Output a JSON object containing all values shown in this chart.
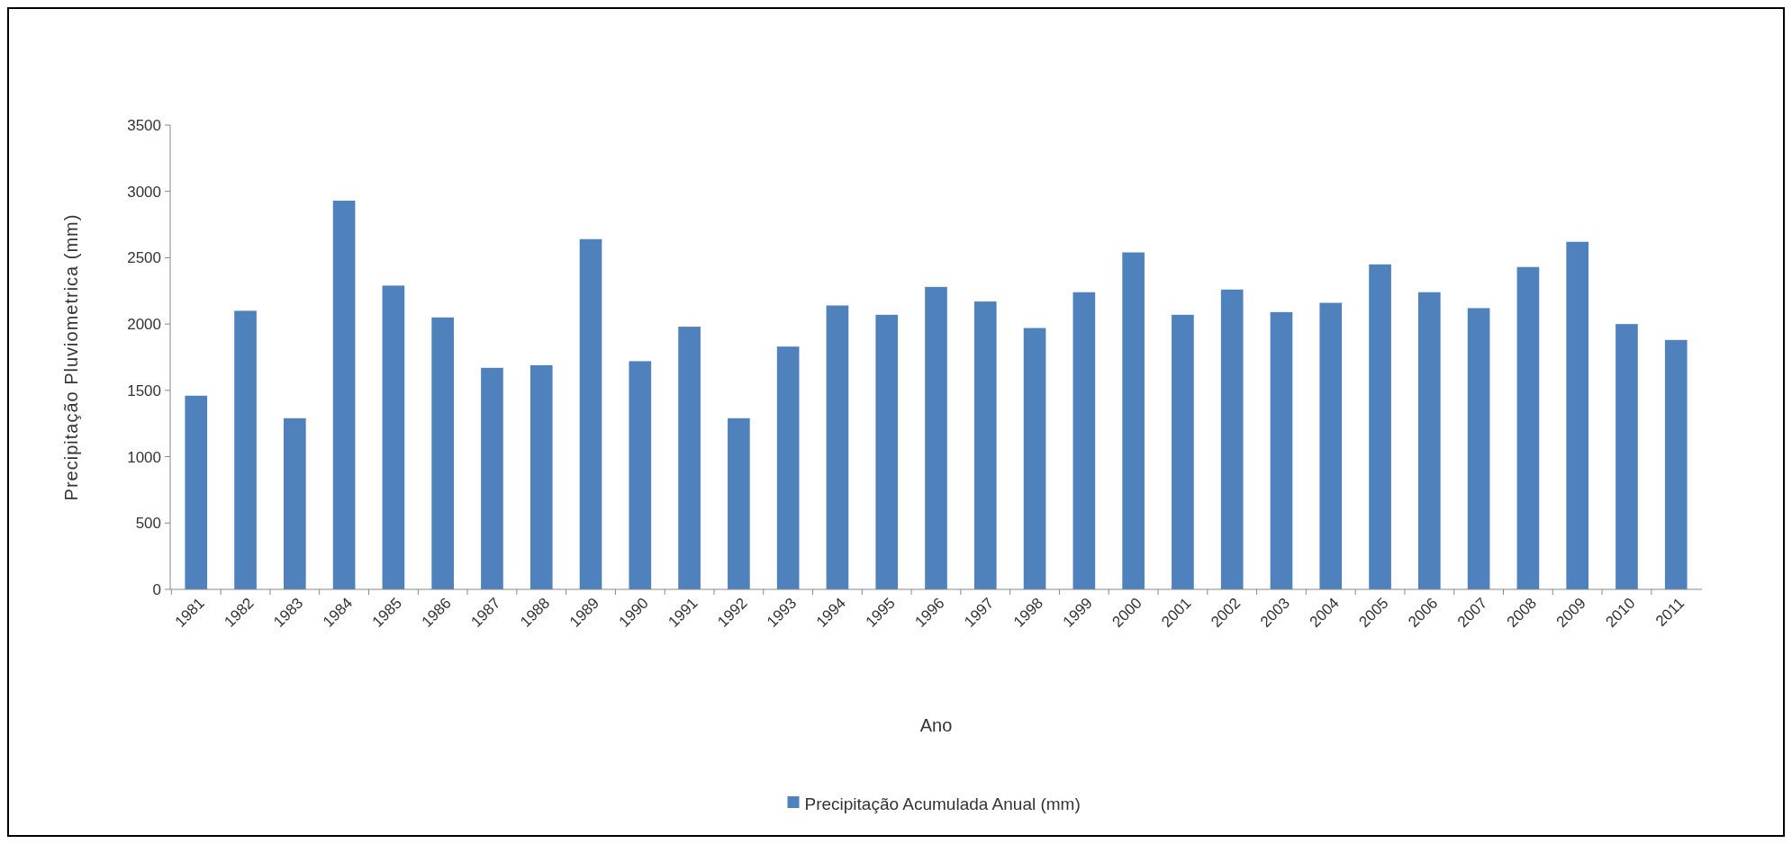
{
  "chart_data": {
    "type": "bar",
    "xlabel": "Ano",
    "ylabel": "Precipitação  Pluviometrica (mm)",
    "categories": [
      "1981",
      "1982",
      "1983",
      "1984",
      "1985",
      "1986",
      "1987",
      "1988",
      "1989",
      "1990",
      "1991",
      "1992",
      "1993",
      "1994",
      "1995",
      "1996",
      "1997",
      "1998",
      "1999",
      "2000",
      "2001",
      "2002",
      "2003",
      "2004",
      "2005",
      "2006",
      "2007",
      "2008",
      "2009",
      "2010",
      "2011"
    ],
    "series": [
      {
        "name": "Precipitação Acumulada Anual (mm)",
        "color": "#4f81bd",
        "values": [
          1460,
          2100,
          1290,
          2930,
          2290,
          2050,
          1670,
          1690,
          2640,
          1720,
          1980,
          1290,
          1830,
          2140,
          2070,
          2280,
          2170,
          1970,
          2240,
          2540,
          2070,
          2260,
          2090,
          2160,
          2450,
          2240,
          2120,
          2430,
          2620,
          2000,
          1880
        ]
      }
    ],
    "ylim": [
      0,
      3500
    ],
    "yticks": [
      0,
      500,
      1000,
      1500,
      2000,
      2500,
      3000,
      3500
    ],
    "grid": false,
    "legend": "bottom"
  }
}
